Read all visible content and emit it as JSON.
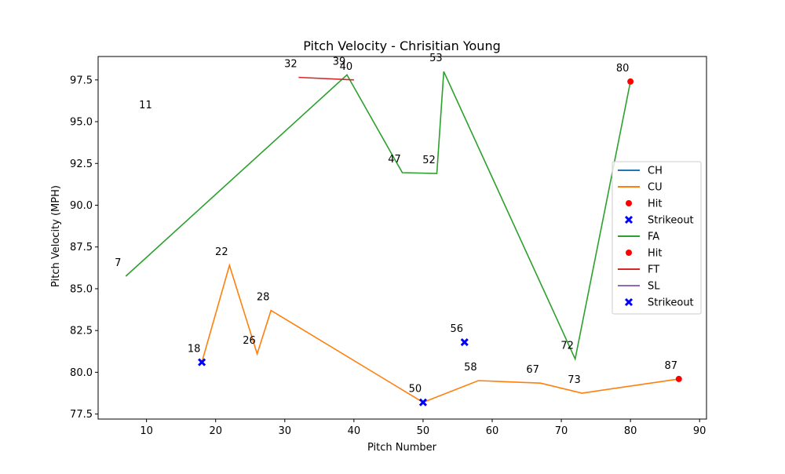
{
  "chart_data": {
    "type": "line",
    "title": "Pitch Velocity - Chrisitian Young",
    "xlabel": "Pitch Number",
    "ylabel": "Pitch Velocity (MPH)",
    "xlim": [
      3,
      91
    ],
    "ylim": [
      77.2,
      98.9
    ],
    "x_ticks": [
      10,
      20,
      30,
      40,
      50,
      60,
      70,
      80,
      90
    ],
    "y_ticks": [
      77.5,
      80.0,
      82.5,
      85.0,
      87.5,
      90.0,
      92.5,
      95.0,
      97.5
    ],
    "y_tick_labels": [
      "77.5",
      "80.0",
      "82.5",
      "85.0",
      "87.5",
      "90.0",
      "92.5",
      "95.0",
      "97.5"
    ],
    "grid": false,
    "legend_position": "center-right",
    "series": [
      {
        "name": "CU",
        "color": "#ff7f0e",
        "points": [
          [
            18,
            80.6
          ],
          [
            22,
            86.4
          ],
          [
            26,
            81.1
          ],
          [
            28,
            83.7
          ],
          [
            50,
            78.2
          ],
          [
            58,
            79.5
          ],
          [
            67,
            79.35
          ],
          [
            73,
            78.75
          ],
          [
            87,
            79.6
          ]
        ]
      },
      {
        "name": "FA",
        "color": "#2ca02c",
        "points": [
          [
            7,
            85.75
          ],
          [
            39,
            97.8
          ],
          [
            47,
            91.95
          ],
          [
            52,
            91.9
          ],
          [
            53,
            98.0
          ],
          [
            72,
            80.8
          ],
          [
            80,
            97.4
          ]
        ]
      },
      {
        "name": "FT",
        "color": "#d62728",
        "points": [
          [
            32,
            97.65
          ],
          [
            40,
            97.5
          ]
        ]
      }
    ],
    "markers": [
      {
        "type": "Hit",
        "color": "#ff0000",
        "shape": "circle",
        "points": [
          [
            80,
            97.4
          ],
          [
            87,
            79.6
          ]
        ]
      },
      {
        "type": "Strikeout",
        "color": "#0000ff",
        "shape": "x",
        "points": [
          [
            18,
            80.6
          ],
          [
            50,
            78.2
          ],
          [
            56,
            81.8
          ]
        ]
      }
    ],
    "annotations": [
      {
        "text": "7",
        "x": 7,
        "y": 85.75
      },
      {
        "text": "11",
        "x": 11,
        "y": 95.2
      },
      {
        "text": "18",
        "x": 18,
        "y": 80.6
      },
      {
        "text": "22",
        "x": 22,
        "y": 86.4
      },
      {
        "text": "26",
        "x": 26,
        "y": 81.1
      },
      {
        "text": "28",
        "x": 28,
        "y": 83.7
      },
      {
        "text": "32",
        "x": 32,
        "y": 97.65
      },
      {
        "text": "39",
        "x": 39,
        "y": 97.8
      },
      {
        "text": "40",
        "x": 40,
        "y": 97.5
      },
      {
        "text": "47",
        "x": 47,
        "y": 91.95
      },
      {
        "text": "50",
        "x": 50,
        "y": 78.2
      },
      {
        "text": "52",
        "x": 52,
        "y": 91.9
      },
      {
        "text": "53",
        "x": 53,
        "y": 98.0
      },
      {
        "text": "56",
        "x": 56,
        "y": 81.8
      },
      {
        "text": "58",
        "x": 58,
        "y": 79.5
      },
      {
        "text": "67",
        "x": 67,
        "y": 79.35
      },
      {
        "text": "72",
        "x": 72,
        "y": 80.8
      },
      {
        "text": "73",
        "x": 73,
        "y": 78.75
      },
      {
        "text": "80",
        "x": 80,
        "y": 97.4
      },
      {
        "text": "87",
        "x": 87,
        "y": 79.6
      }
    ],
    "legend": [
      {
        "label": "CH",
        "kind": "line",
        "color": "#1f77b4"
      },
      {
        "label": "CU",
        "kind": "line",
        "color": "#ff7f0e"
      },
      {
        "label": "Hit",
        "kind": "circle",
        "color": "#ff0000"
      },
      {
        "label": "Strikeout",
        "kind": "x",
        "color": "#0000ff"
      },
      {
        "label": "FA",
        "kind": "line",
        "color": "#2ca02c"
      },
      {
        "label": "Hit",
        "kind": "circle",
        "color": "#ff0000"
      },
      {
        "label": "FT",
        "kind": "line",
        "color": "#d62728"
      },
      {
        "label": "SL",
        "kind": "line",
        "color": "#9467bd"
      },
      {
        "label": "Strikeout",
        "kind": "x",
        "color": "#0000ff"
      }
    ]
  }
}
